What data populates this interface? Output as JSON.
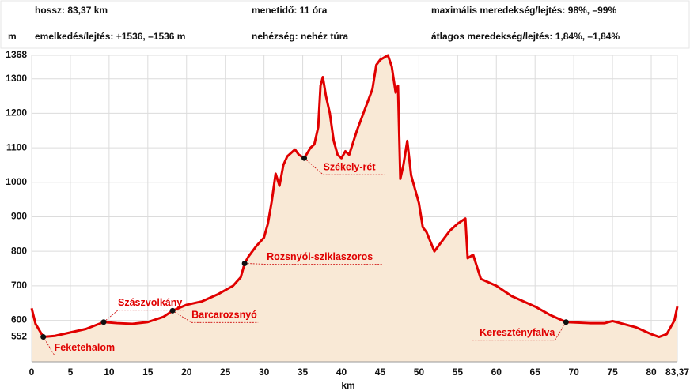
{
  "chart_data": {
    "type": "line",
    "info": {
      "length": "hossz: 83,37 km",
      "ascent": "emelkedés/lejtés: +1536, –1536 m",
      "time": "menetidő: 11 óra",
      "difficulty": "nehézség: nehéz túra",
      "max_slope": "maximális meredekség/lejtés: 98%, –99%",
      "avg_slope": "átlagos meredekség/lejtés: 1,84%, –1,84%"
    },
    "y_label": "m",
    "x_label": "km",
    "xlim": [
      0,
      83.37
    ],
    "ylim": [
      480,
      1368
    ],
    "xticks": [
      0,
      5,
      10,
      15,
      20,
      25,
      30,
      35,
      40,
      45,
      50,
      55,
      60,
      65,
      70,
      75,
      80,
      {
        "value": 83.37,
        "label": "83,37"
      }
    ],
    "yticks": [
      552,
      600,
      700,
      800,
      900,
      1000,
      1100,
      1200,
      1300,
      1368
    ],
    "grid": true,
    "color": "#e00000",
    "fill": "#f9e9d6",
    "x": [
      0,
      0.5,
      1.5,
      3,
      5,
      7,
      9.3,
      11,
      13,
      15,
      17,
      18.2,
      20,
      22,
      24,
      26,
      27,
      27.5,
      28,
      29,
      30,
      30.5,
      31,
      31.5,
      32,
      32.5,
      33,
      34,
      34.5,
      35.2,
      36,
      36.5,
      37,
      37.3,
      37.6,
      38,
      38.5,
      39,
      39.5,
      40,
      40.5,
      41,
      42,
      43,
      44,
      44.5,
      45,
      46,
      46.5,
      47,
      47.3,
      47.6,
      48,
      48.5,
      49,
      49.5,
      50,
      50.5,
      51,
      52,
      53,
      54,
      55,
      56,
      56.3,
      57,
      58,
      60,
      62,
      65,
      67,
      69,
      72,
      74,
      75,
      78,
      80,
      81,
      82,
      83,
      83.37
    ],
    "values": [
      635,
      590,
      552,
      555,
      565,
      575,
      595,
      592,
      590,
      595,
      610,
      628,
      645,
      655,
      675,
      700,
      725,
      765,
      785,
      815,
      840,
      880,
      945,
      1025,
      990,
      1050,
      1075,
      1095,
      1080,
      1070,
      1100,
      1110,
      1160,
      1280,
      1305,
      1250,
      1200,
      1120,
      1080,
      1070,
      1090,
      1080,
      1150,
      1210,
      1270,
      1340,
      1355,
      1368,
      1335,
      1260,
      1280,
      1010,
      1050,
      1120,
      1020,
      980,
      940,
      870,
      855,
      800,
      830,
      860,
      880,
      895,
      780,
      790,
      720,
      700,
      670,
      640,
      615,
      595,
      592,
      592,
      598,
      580,
      560,
      552,
      560,
      600,
      640
    ],
    "waypoints": [
      {
        "name": "Feketehalom",
        "x": 1.5,
        "y": 552
      },
      {
        "name": "Szászvolkány",
        "x": 9.3,
        "y": 595
      },
      {
        "name": "Barcarozsnyó",
        "x": 18.2,
        "y": 628
      },
      {
        "name": "Rozsnyói-sziklaszoros",
        "x": 27.5,
        "y": 765
      },
      {
        "name": "Székely-rét",
        "x": 35.2,
        "y": 1070
      },
      {
        "name": "Keresztényfalva",
        "x": 69,
        "y": 595
      }
    ]
  }
}
